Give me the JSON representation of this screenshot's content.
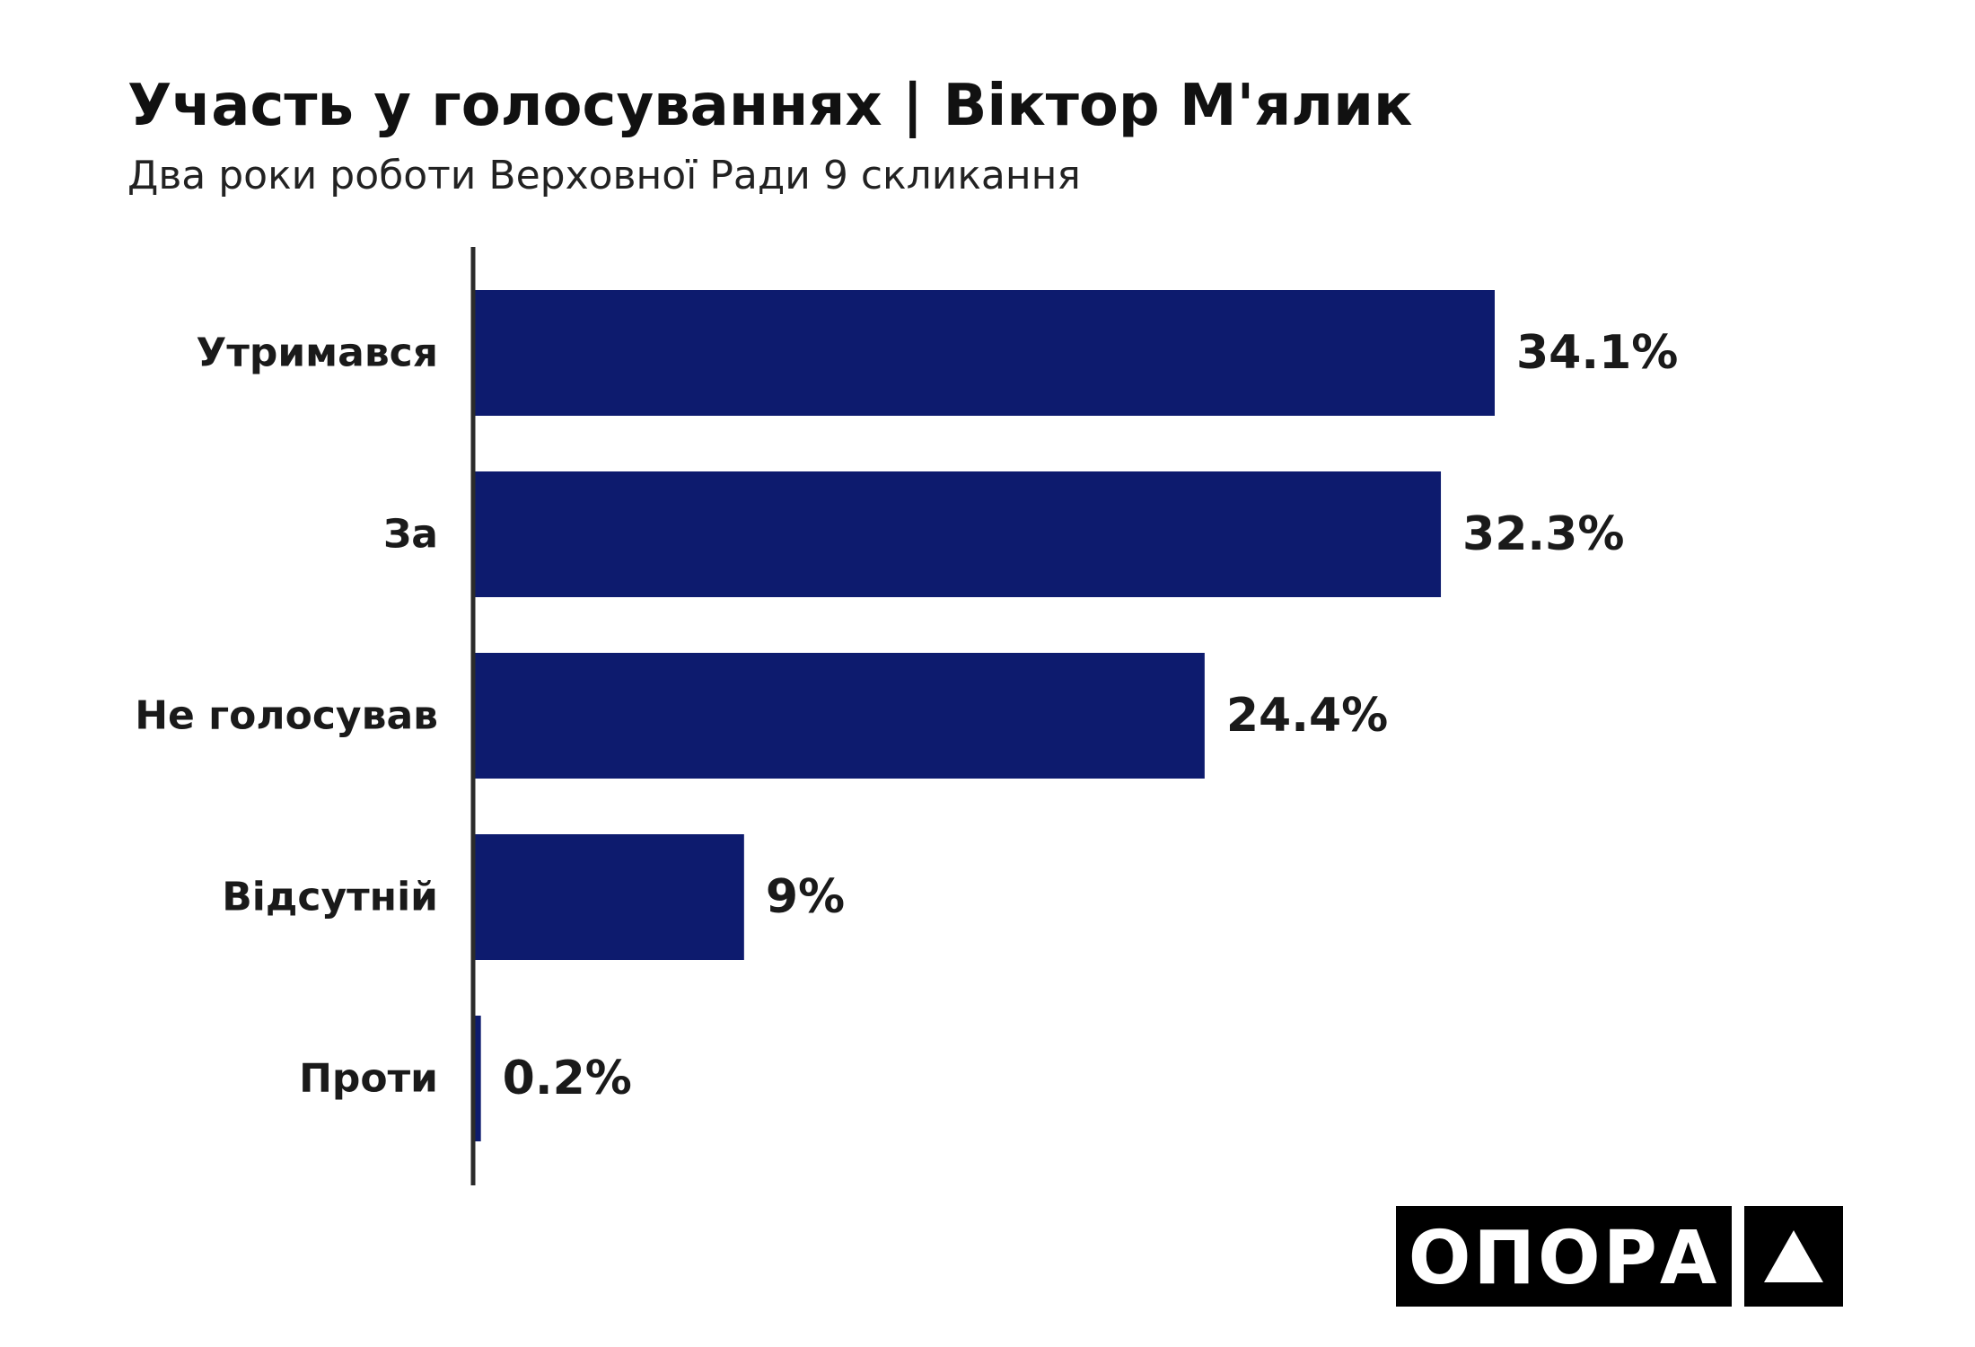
{
  "chart_data": {
    "type": "bar",
    "orientation": "horizontal",
    "title": "Участь у голосуваннях | Віктор М'ялик",
    "subtitle": "Два роки роботи Верховної Ради 9 скликання",
    "categories": [
      "Утримався",
      "За",
      "Не голосував",
      "Відсутній",
      "Проти"
    ],
    "values": [
      34.1,
      32.3,
      24.4,
      9,
      0.2
    ],
    "value_labels": [
      "34.1%",
      "32.3%",
      "24.4%",
      "9%",
      "0.2%"
    ],
    "xlim": [
      0,
      34.1
    ],
    "grid": false,
    "legend": "none",
    "bar_color": "#0d1b6e"
  },
  "logo": {
    "word": "ОПОРА",
    "mark_icon": "triangle-icon"
  }
}
